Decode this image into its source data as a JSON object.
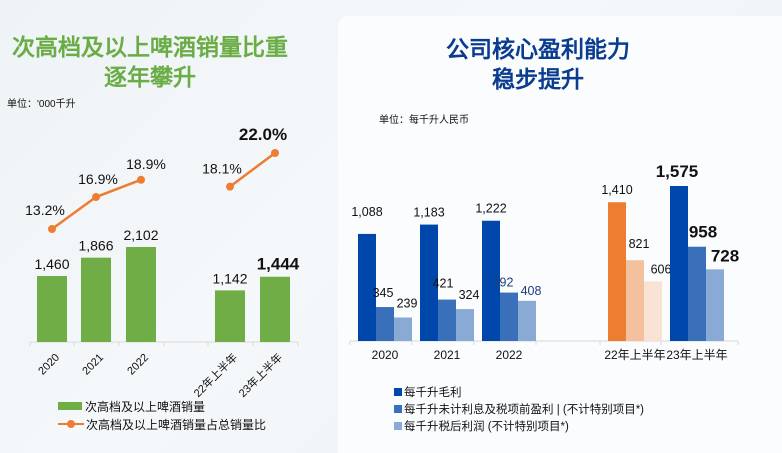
{
  "left": {
    "title_line1": "次高档及以上啤酒销量比重",
    "title_line2": "逐年攀升",
    "unit": "单位：'000千升",
    "legend": {
      "bar": "次高档及以上啤酒销量",
      "line": "次高档及以上啤酒销量占总销量比"
    }
  },
  "right": {
    "title_line1": "公司核心盈利能力",
    "title_line2": "稳步提升",
    "unit": "单位：每千升人民币",
    "legend": [
      {
        "label": "每千升毛利",
        "color": "#0047ab"
      },
      {
        "label": "每千升未计利息及税项前盈利 | (不计特别项目*)",
        "color": "#3a6fba"
      },
      {
        "label": "每千升税后利润 (不计特别项目*)",
        "color": "#8aaad6"
      }
    ]
  },
  "chart_data": [
    {
      "type": "bar",
      "title": "次高档及以上啤酒销量比重逐年攀升",
      "unit": "'000千升",
      "categories": [
        "2020",
        "2021",
        "2022",
        "",
        "22年上半年",
        "23年上半年"
      ],
      "series": [
        {
          "name": "次高档及以上啤酒销量",
          "type": "bar",
          "color": "#70ad47",
          "values": [
            1460,
            1866,
            2102,
            null,
            1142,
            1444
          ],
          "labels": [
            "1,460",
            "1,866",
            "2,102",
            "",
            "1,142",
            "1,444"
          ]
        },
        {
          "name": "次高档及以上啤酒销量占总销量比",
          "type": "line",
          "color": "#ed7d31",
          "values": [
            13.2,
            16.9,
            18.9,
            null,
            18.1,
            22.0
          ],
          "labels": [
            "13.2%",
            "16.9%",
            "18.9%",
            "",
            "18.1%",
            "22.0%"
          ]
        }
      ],
      "highlight": [
        "1,444",
        "22.0%"
      ],
      "ylim_left": [
        0,
        2000
      ],
      "ylim_right_pct": [
        0,
        25
      ]
    },
    {
      "type": "bar",
      "title": "公司核心盈利能力稳步提升",
      "unit": "每千升人民币",
      "categories": [
        "2020",
        "2021",
        "2022",
        "",
        "22年上半年",
        "23年上半年"
      ],
      "series": [
        {
          "name": "每千升毛利",
          "values": [
            1088,
            1183,
            1222,
            null,
            1410,
            1575
          ],
          "labels": [
            "1,088",
            "1,183",
            "1,222",
            "",
            "1,410",
            "1,575"
          ]
        },
        {
          "name": "每千升未计利息及税项前盈利 | (不计特别项目*)",
          "values": [
            345,
            421,
            492,
            null,
            821,
            958
          ],
          "labels": [
            "345",
            "421",
            "492",
            "",
            "821",
            "958"
          ]
        },
        {
          "name": "每千升税后利润 (不计特别项目*)",
          "values": [
            239,
            324,
            408,
            null,
            606,
            728
          ],
          "labels": [
            "239",
            "324",
            "408",
            "",
            "606",
            "728"
          ]
        }
      ],
      "colors_by_category": {
        "default": [
          "#0047ab",
          "#3a6fba",
          "#8aaad6"
        ],
        "22年上半年": [
          "#ed7d31",
          "#f4c19f",
          "#f9e3d5"
        ]
      },
      "highlight_category": "23年上半年",
      "ylim": [
        0,
        1700
      ]
    }
  ]
}
